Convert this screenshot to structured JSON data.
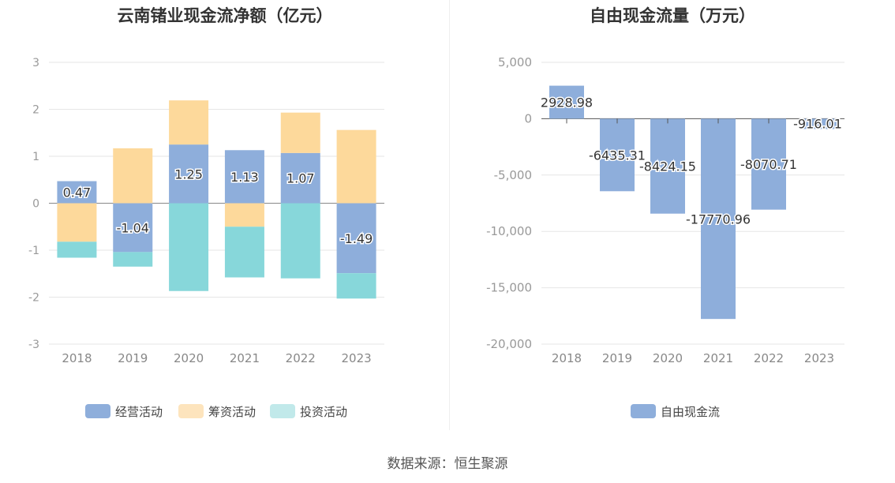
{
  "source_label": "数据来源：恒生聚源",
  "chart_data": [
    {
      "type": "bar",
      "stacked": true,
      "title": "云南锗业现金流净额（亿元）",
      "categories": [
        "2018",
        "2019",
        "2020",
        "2021",
        "2022",
        "2023"
      ],
      "ylim": [
        -3,
        3
      ],
      "yticks": [
        3,
        2,
        1,
        0,
        -1,
        -2,
        -3
      ],
      "grid": true,
      "legend_position": "bottom",
      "series": [
        {
          "name": "经营活动",
          "color": "#8eaedb",
          "values": [
            0.47,
            -1.04,
            1.25,
            1.13,
            1.07,
            -1.49
          ],
          "labels": [
            "0.47",
            "-1.04",
            "1.25",
            "1.13",
            "1.07",
            "-1.49"
          ]
        },
        {
          "name": "筹资活动",
          "color": "#fdd99b",
          "values": [
            -0.82,
            1.17,
            0.94,
            -0.5,
            0.86,
            1.56
          ]
        },
        {
          "name": "投资活动",
          "color": "#87d7da",
          "values": [
            -0.34,
            -0.31,
            -1.87,
            -1.08,
            -1.6,
            -0.54
          ]
        }
      ],
      "legend": [
        {
          "name": "经营活动",
          "color": "#8eaedb"
        },
        {
          "name": "筹资活动",
          "color": "#fde4bd"
        },
        {
          "name": "投资活动",
          "color": "#c1e9ea"
        }
      ]
    },
    {
      "type": "bar",
      "title": "自由现金流量（万元）",
      "categories": [
        "2018",
        "2019",
        "2020",
        "2021",
        "2022",
        "2023"
      ],
      "ylim": [
        -20000,
        5000
      ],
      "yticks": [
        "5,000",
        "0",
        "-5,000",
        "-10,000",
        "-15,000",
        "-20,000"
      ],
      "ytick_values": [
        5000,
        0,
        -5000,
        -10000,
        -15000,
        -20000
      ],
      "grid": true,
      "legend_position": "bottom",
      "series": [
        {
          "name": "自由现金流",
          "color": "#8eaedb",
          "values": [
            2928.98,
            -6435.31,
            -8424.15,
            -17770.96,
            -8070.71,
            -916.01
          ],
          "labels": [
            "2928.98",
            "-6435.31",
            "-8424.15",
            "-17770.96",
            "-8070.71",
            "-916.01"
          ]
        }
      ],
      "legend": [
        {
          "name": "自由现金流",
          "color": "#8eaedb"
        }
      ]
    }
  ]
}
